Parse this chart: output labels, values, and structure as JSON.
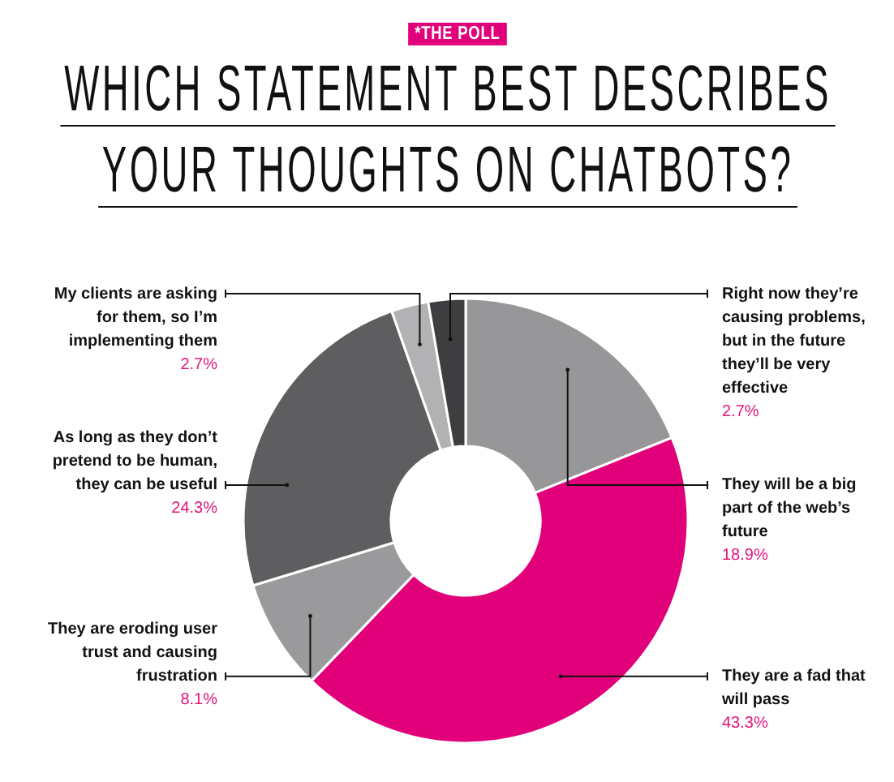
{
  "chart_data": {
    "type": "donut",
    "title": "WHICH STATEMENT BEST DESCRIBES YOUR THOUGHTS ON CHATBOTS?",
    "annotations": [
      "*THE POLL"
    ],
    "categories": [
      "They will be a big part of the web’s future",
      "They are a fad that will pass",
      "They are eroding user trust and causing frustration",
      "As long as they don’t pretend to be human, they can be useful",
      "My clients are asking for them, so I’m implementing them",
      "Right now they’re causing problems, but in the future they’ll be very effective"
    ],
    "values": [
      18.9,
      43.3,
      8.1,
      24.3,
      2.7,
      2.7
    ],
    "value_labels": [
      "18.9%",
      "43.3%",
      "8.1%",
      "24.3%",
      "2.7%",
      "2.7%"
    ],
    "colors": [
      "#97979a",
      "#e2007a",
      "#9a9a9d",
      "#5e5e61",
      "#b2b2b4",
      "#3e3e41"
    ]
  }
}
